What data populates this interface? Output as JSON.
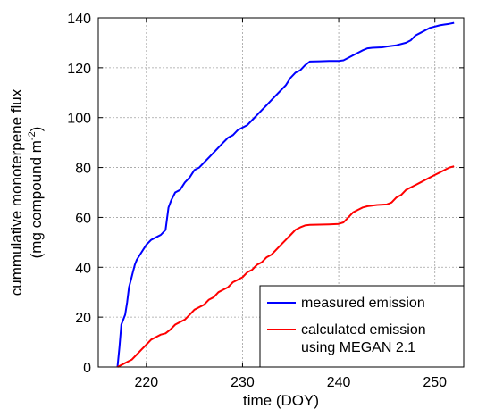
{
  "chart_data": {
    "type": "line",
    "xlabel": "time (DOY)",
    "ylabel_line1": "cummulative monoterpene flux",
    "ylabel_line2_pre": "(mg compound m",
    "ylabel_line2_sup": "-2",
    "ylabel_line2_post": ")",
    "xlim": [
      215,
      253
    ],
    "ylim": [
      0,
      140
    ],
    "xticks": [
      220,
      230,
      240,
      250
    ],
    "yticks": [
      0,
      20,
      40,
      60,
      80,
      100,
      120,
      140
    ],
    "grid": true,
    "legend_position": "bottom-right",
    "series": [
      {
        "name": "measured emission",
        "color": "#0000ff",
        "x": [
          217.0,
          217.2,
          217.4,
          217.6,
          217.8,
          218.0,
          218.2,
          218.4,
          218.6,
          218.8,
          219.0,
          219.5,
          220.0,
          220.5,
          221.0,
          221.5,
          222.0,
          222.3,
          222.6,
          223.0,
          223.5,
          224.0,
          224.5,
          225.0,
          225.5,
          226.0,
          226.5,
          227.0,
          227.5,
          228.0,
          228.5,
          229.0,
          229.5,
          230.0,
          230.5,
          231.0,
          231.5,
          232.0,
          232.5,
          233.0,
          233.5,
          234.0,
          234.5,
          235.0,
          235.5,
          236.0,
          236.5,
          237.0,
          238.0,
          239.0,
          240.0,
          240.5,
          241.0,
          241.5,
          242.0,
          242.5,
          243.0,
          243.5,
          244.0,
          244.5,
          245.0,
          246.0,
          247.0,
          247.5,
          248.0,
          248.5,
          249.0,
          249.5,
          250.0,
          250.5,
          251.0,
          251.5,
          252.0
        ],
        "y": [
          0,
          8,
          17,
          19,
          21,
          26,
          32,
          35,
          38,
          41,
          43,
          46,
          49,
          51,
          52,
          53,
          55,
          64,
          67,
          70,
          71,
          74,
          76,
          79,
          80,
          82,
          84,
          86,
          88,
          90,
          92,
          93,
          95,
          96,
          97,
          99,
          101,
          103,
          105,
          107,
          109,
          111,
          113,
          116,
          118,
          119,
          121,
          122.5,
          122.6,
          122.7,
          122.7,
          123,
          124,
          125,
          126,
          127,
          127.8,
          128,
          128.1,
          128.2,
          128.5,
          129,
          130,
          131,
          133,
          134,
          135,
          136,
          136.5,
          137,
          137.3,
          137.6,
          138
        ]
      },
      {
        "name": "calculated emission\nusing MEGAN 2.1",
        "color": "#ff0000",
        "x": [
          217.0,
          217.5,
          218.0,
          218.5,
          219.0,
          219.5,
          220.0,
          220.5,
          221.0,
          221.5,
          222.0,
          222.5,
          223.0,
          223.5,
          224.0,
          224.5,
          225.0,
          225.5,
          226.0,
          226.5,
          227.0,
          227.5,
          228.0,
          228.5,
          229.0,
          229.5,
          230.0,
          230.5,
          231.0,
          231.5,
          232.0,
          232.5,
          233.0,
          233.5,
          234.0,
          234.5,
          235.0,
          235.5,
          236.0,
          236.5,
          237.0,
          238.0,
          239.0,
          240.0,
          240.5,
          241.0,
          241.5,
          242.0,
          242.5,
          243.0,
          244.0,
          245.0,
          245.5,
          246.0,
          246.5,
          247.0,
          247.5,
          248.0,
          248.5,
          249.0,
          249.5,
          250.0,
          250.5,
          251.0,
          251.5,
          252.0
        ],
        "y": [
          0,
          1,
          2,
          3,
          5,
          7,
          9,
          11,
          12,
          13,
          13.5,
          15,
          17,
          18,
          19,
          21,
          23,
          24,
          25,
          27,
          28,
          30,
          31,
          32,
          34,
          35,
          36,
          38,
          39,
          41,
          42,
          44,
          45,
          47,
          49,
          51,
          53,
          55,
          56,
          56.8,
          57,
          57.1,
          57.2,
          57.4,
          58,
          60,
          62,
          63,
          64,
          64.5,
          65,
          65.2,
          66,
          68,
          69,
          71,
          72,
          73,
          74,
          75,
          76,
          77,
          78,
          79,
          80,
          80.5
        ]
      }
    ]
  }
}
